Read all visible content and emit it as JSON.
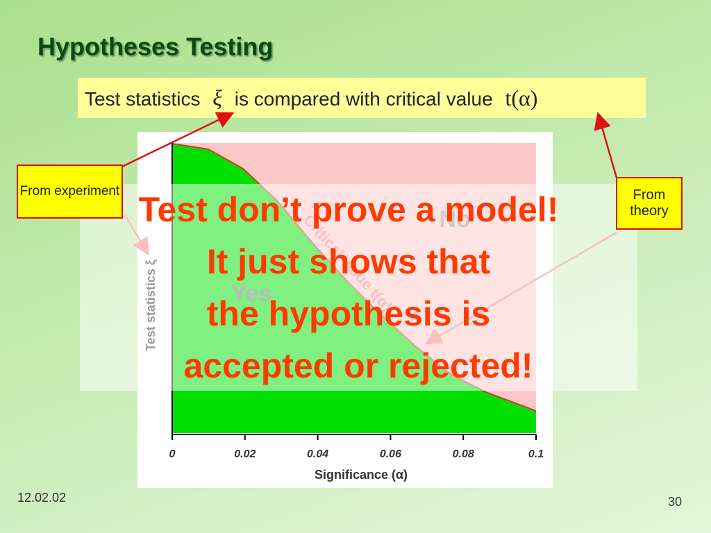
{
  "title": "Hypotheses Testing",
  "statement": {
    "before": "Test statistics",
    "symbol": "ξ",
    "middle": "is compared with critical value",
    "formula": "t(α)"
  },
  "chart_data": {
    "type": "area",
    "xlabel": "Significance (α)",
    "ylabel": "Test statistics ξ",
    "xlim": [
      0,
      0.1
    ],
    "xticks": [
      0,
      0.02,
      0.04,
      0.06,
      0.08,
      0.1
    ],
    "annotations": [
      "No",
      "Yes",
      "Critical value t(α)"
    ]
  },
  "callouts": {
    "experiment": "From experiment",
    "theory": "From theory"
  },
  "overlay": {
    "lines": [
      "Test don’t prove a model!",
      "It just shows that",
      "the hypothesis is",
      "accepted or rejected!"
    ]
  },
  "footer": {
    "date": "12.02.02",
    "page": "30"
  }
}
